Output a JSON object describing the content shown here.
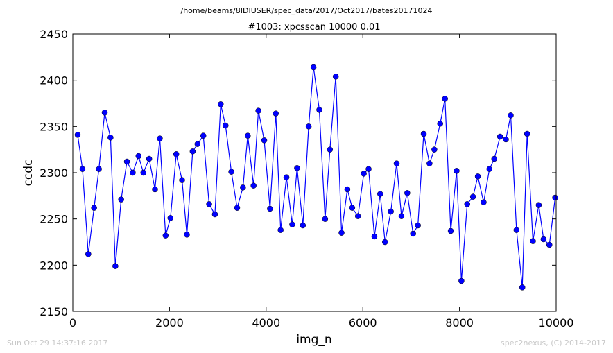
{
  "chart_data": {
    "type": "line",
    "suptitle": "/home/beams/8IDIUSER/spec_data/2017/Oct2017/bates20171024",
    "title": "#1003: xpcsscan 10000 0.01",
    "xlabel": "img_n",
    "ylabel": "ccdc",
    "xlim": [
      0,
      10000
    ],
    "ylim": [
      2150,
      2450
    ],
    "xticks": [
      "0",
      "2000",
      "4000",
      "6000",
      "8000",
      "10000"
    ],
    "yticks": [
      "2150",
      "2200",
      "2250",
      "2300",
      "2350",
      "2400",
      "2450"
    ],
    "grid": false,
    "marker": "circle",
    "line_color": "#0000ff",
    "series": [
      {
        "x": [
          100,
          200,
          320,
          440,
          540,
          660,
          780,
          880,
          1000,
          1120,
          1240,
          1360,
          1460,
          1580,
          1700,
          1800,
          1920,
          2020,
          2140,
          2260,
          2360,
          2480,
          2580,
          2700,
          2820,
          2940,
          3060,
          3160,
          3280,
          3400,
          3520,
          3620,
          3740,
          3840,
          3960,
          4080,
          4200,
          4300,
          4420,
          4540,
          4640,
          4760,
          4880,
          4980,
          5100,
          5220,
          5320,
          5440,
          5560,
          5680,
          5780,
          5900,
          6020,
          6120,
          6240,
          6360,
          6460,
          6580,
          6700,
          6800,
          6920,
          7040,
          7140,
          7260,
          7380,
          7480,
          7600,
          7700,
          7820,
          7940,
          8040,
          8160,
          8280,
          8380,
          8500,
          8620,
          8720,
          8840,
          8960,
          9060,
          9180,
          9300,
          9400,
          9520,
          9640,
          9740,
          9860,
          9980
        ],
        "y": [
          2341,
          2304,
          2212,
          2262,
          2304,
          2365,
          2338,
          2199,
          2271,
          2312,
          2300,
          2318,
          2300,
          2315,
          2282,
          2337,
          2232,
          2251,
          2320,
          2292,
          2233,
          2323,
          2331,
          2340,
          2266,
          2255,
          2374,
          2351,
          2301,
          2262,
          2284,
          2340,
          2286,
          2367,
          2335,
          2261,
          2364,
          2238,
          2295,
          2244,
          2305,
          2243,
          2350,
          2414,
          2368,
          2250,
          2325,
          2404,
          2235,
          2282,
          2262,
          2253,
          2299,
          2304,
          2231,
          2277,
          2225,
          2258,
          2310,
          2253,
          2278,
          2234,
          2243,
          2342,
          2310,
          2325,
          2353,
          2380,
          2237,
          2302,
          2183,
          2266,
          2274,
          2296,
          2268,
          2304,
          2315,
          2339,
          2336,
          2362,
          2238,
          2176,
          2342,
          2226,
          2265,
          2228,
          2222,
          2273
        ]
      }
    ]
  },
  "footer": {
    "timestamp": "Sun Oct 29 14:37:16 2017",
    "credit": "spec2nexus, (C) 2014-2017"
  }
}
